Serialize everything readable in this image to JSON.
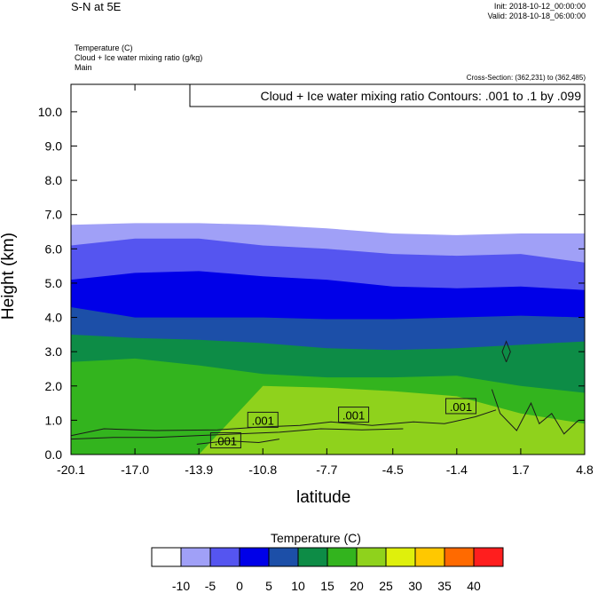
{
  "header": {
    "title": "S-N at 5E",
    "init": "Init: 2018-10-12_00:00:00",
    "valid": "Valid: 2018-10-18_06:00:00",
    "desc_line1": "Temperature   (C)",
    "desc_line2": "Cloud + Ice water mixing ratio   (g/kg)",
    "desc_line3": "Main",
    "cross_section": "Cross-Section: (362,231) to (362,485)",
    "contour_info": "Cloud + Ice water mixing ratio Contours: .001 to .1 by .099"
  },
  "chart_data": {
    "type": "area",
    "title": "S-N at 5E",
    "xlabel": "latitude",
    "ylabel": "Height (km)",
    "xlim": [
      -20.1,
      4.8
    ],
    "ylim": [
      0.0,
      10.8
    ],
    "xticks": [
      "-20.1",
      "-17.0",
      "-13.9",
      "-10.8",
      "-7.7",
      "-4.5",
      "-1.4",
      "1.7",
      "4.8"
    ],
    "yticks": [
      "0.0",
      "1.0",
      "2.0",
      "3.0",
      "4.0",
      "5.0",
      "6.0",
      "7.0",
      "8.0",
      "9.0",
      "10.0"
    ],
    "x": [
      -20.1,
      -17.0,
      -13.9,
      -10.8,
      -7.7,
      -4.5,
      -1.4,
      1.7,
      4.8
    ],
    "series": [
      {
        "name": "-10",
        "color": "#a0a0f7",
        "upper_height_km": [
          6.7,
          6.75,
          6.75,
          6.7,
          6.6,
          6.45,
          6.4,
          6.45,
          6.45
        ]
      },
      {
        "name": "-5",
        "color": "#5555f0",
        "upper_height_km": [
          6.1,
          6.3,
          6.3,
          6.1,
          6.0,
          5.85,
          5.8,
          5.85,
          5.6
        ]
      },
      {
        "name": "0",
        "color": "#0000e8",
        "upper_height_km": [
          5.1,
          5.3,
          5.35,
          5.2,
          5.1,
          4.9,
          4.85,
          4.9,
          4.8
        ]
      },
      {
        "name": "5",
        "color": "#1c4fa8",
        "upper_height_km": [
          4.3,
          4.0,
          4.0,
          4.0,
          3.95,
          3.95,
          4.0,
          4.05,
          4.0
        ]
      },
      {
        "name": "10",
        "color": "#0d8c46",
        "upper_height_km": [
          3.5,
          3.4,
          3.35,
          3.25,
          3.1,
          3.05,
          3.1,
          3.2,
          3.3
        ]
      },
      {
        "name": "15",
        "color": "#33b41e",
        "upper_height_km": [
          2.7,
          2.8,
          2.6,
          2.35,
          2.25,
          2.25,
          2.3,
          2.0,
          1.8
        ]
      },
      {
        "name": "20",
        "color": "#8fd21c",
        "upper_height_km": [
          0.0,
          0.0,
          0.0,
          2.0,
          1.95,
          1.85,
          1.7,
          1.2,
          0.9
        ]
      }
    ],
    "contour_labels": [
      ".001",
      ".001",
      ".001",
      ".001"
    ],
    "colorbar": {
      "title": "Temperature  (C)",
      "colors": [
        "#ffffff",
        "#a0a0f7",
        "#5555f0",
        "#0000e8",
        "#1c4fa8",
        "#0d8c46",
        "#33b41e",
        "#8fd21c",
        "#dff00c",
        "#ffc800",
        "#ff6a00",
        "#ff1e1e"
      ],
      "labels": [
        "-10",
        "-5",
        "0",
        "5",
        "10",
        "15",
        "20",
        "25",
        "30",
        "35",
        "40"
      ]
    },
    "grid": false,
    "legend_position": "bottom"
  }
}
